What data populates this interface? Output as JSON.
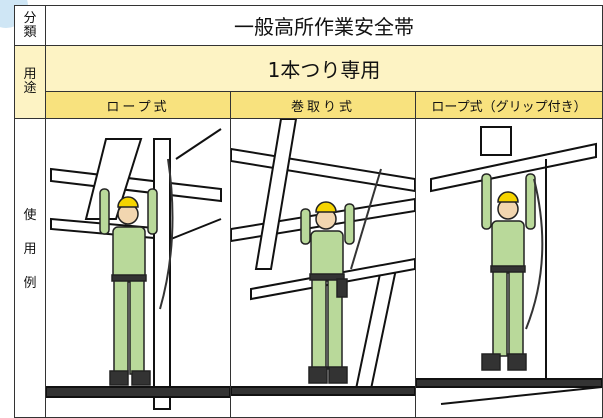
{
  "header": {
    "classification_label": "分類",
    "title": "一般高所作業安全帯"
  },
  "purpose": {
    "label": "用途",
    "text": "1本つり専用"
  },
  "columns": [
    "ロープ式",
    "巻取り式",
    "ロープ式（グリップ付き）"
  ],
  "examples": {
    "label": "使用例"
  }
}
